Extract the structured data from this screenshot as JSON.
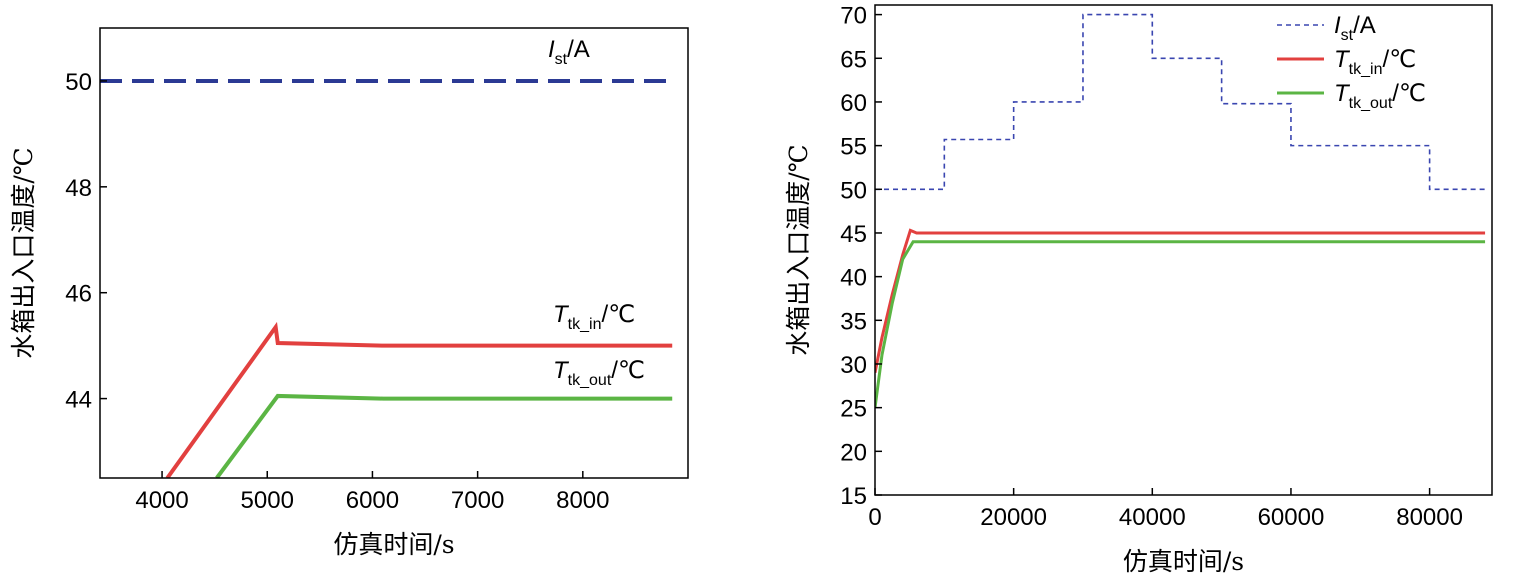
{
  "chart_data": [
    {
      "type": "line",
      "x_label": "仿真时间/s",
      "y_label": "水箱出入口温度/℃",
      "xlim": [
        3410,
        9000
      ],
      "xticks": [
        4000,
        5000,
        6000,
        7000,
        8000
      ],
      "ylim": [
        42.5,
        51
      ],
      "yticks": [
        44,
        46,
        48,
        50
      ],
      "legend": "inline",
      "series": [
        {
          "name": "I",
          "sub": "st",
          "unit": "/A",
          "color": "#2b3a94",
          "style": "dashed",
          "x": [
            3410,
            8850
          ],
          "values": [
            50,
            50
          ]
        },
        {
          "name": "T",
          "sub": "tk_in",
          "unit": "/℃",
          "color": "#e2403f",
          "style": "solid",
          "x": [
            4050,
            5080,
            5100,
            6100,
            8850
          ],
          "values": [
            42.5,
            45.35,
            45.05,
            45.0,
            45.0
          ]
        },
        {
          "name": "T",
          "sub": "tk_out",
          "unit": "/℃",
          "color": "#5bb544",
          "style": "solid",
          "x": [
            4520,
            5100,
            6100,
            8850
          ],
          "values": [
            42.5,
            44.05,
            44.0,
            44.0
          ]
        }
      ]
    },
    {
      "type": "line",
      "x_label": "仿真时间/s",
      "y_label": "水箱出入口温度/℃",
      "xlim": [
        0,
        89000
      ],
      "xticks": [
        0,
        20000,
        40000,
        60000,
        80000
      ],
      "ylim": [
        15,
        71.1
      ],
      "yticks": [
        15,
        20,
        25,
        30,
        35,
        40,
        45,
        50,
        55,
        60,
        65,
        70
      ],
      "legend": "upper right",
      "series": [
        {
          "name": "I",
          "sub": "st",
          "unit": "/A",
          "color": "#3a46b0",
          "style": "dotted",
          "x": [
            0,
            10000,
            10000,
            20000,
            20000,
            30000,
            30000,
            40000,
            40000,
            50000,
            50000,
            60000,
            60000,
            80000,
            80000,
            88000
          ],
          "values": [
            50,
            50,
            55.7,
            55.7,
            60,
            60,
            70,
            70,
            65,
            65,
            59.8,
            59.8,
            55,
            55,
            50,
            50
          ]
        },
        {
          "name": "T",
          "sub": "tk_in",
          "unit": "/℃",
          "color": "#e2403f",
          "style": "solid",
          "x": [
            0,
            1000,
            2500,
            4000,
            5100,
            6000,
            88000
          ],
          "values": [
            29,
            33,
            38,
            42.5,
            45.3,
            45,
            45
          ]
        },
        {
          "name": "T",
          "sub": "tk_out",
          "unit": "/℃",
          "color": "#5bb544",
          "style": "solid",
          "x": [
            0,
            1000,
            2500,
            4000,
            5500,
            88000
          ],
          "values": [
            25,
            31,
            37,
            42,
            44,
            44
          ]
        }
      ]
    }
  ]
}
